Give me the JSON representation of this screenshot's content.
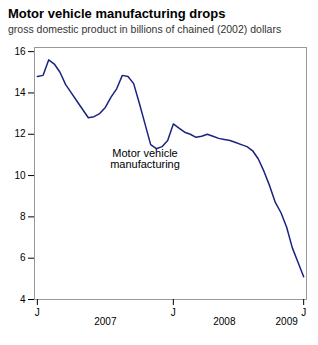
{
  "chart_data": {
    "type": "line",
    "title": "Motor vehicle manufacturing drops",
    "subtitle": "gross domestic product in billions of chained (2002) dollars",
    "color": "#1a237e",
    "x": [
      0,
      1,
      2,
      3,
      4,
      5,
      6,
      7,
      8,
      9,
      10,
      11,
      12,
      13,
      14,
      15,
      16,
      17,
      18,
      19,
      20,
      21,
      22,
      23,
      24,
      25,
      26,
      27,
      28,
      29,
      30,
      31,
      32,
      33,
      34,
      35,
      36,
      37,
      38,
      39,
      40,
      41,
      42,
      43,
      44,
      45,
      46,
      47
    ],
    "values": [
      14.8,
      14.85,
      15.6,
      15.4,
      15.0,
      14.4,
      14.0,
      13.6,
      13.2,
      12.8,
      12.85,
      13.0,
      13.3,
      13.8,
      14.2,
      14.85,
      14.8,
      14.45,
      13.5,
      12.5,
      11.5,
      11.3,
      11.4,
      11.7,
      12.5,
      12.3,
      12.1,
      12.0,
      11.85,
      11.9,
      12.0,
      11.9,
      11.8,
      11.75,
      11.7,
      11.6,
      11.5,
      11.4,
      11.2,
      10.8,
      10.2,
      9.5,
      8.7,
      8.2,
      7.5,
      6.5,
      5.8,
      5.1
    ],
    "xlim": [
      -0.5,
      47.5
    ],
    "xticks": [
      {
        "value": 0,
        "label": "J"
      },
      {
        "value": 24,
        "label": "J"
      },
      {
        "value": 47,
        "label": "J"
      }
    ],
    "year_labels": [
      {
        "x": 12,
        "text": "2007"
      },
      {
        "x": 33,
        "text": "2008"
      },
      {
        "x": 44,
        "text": "2009"
      }
    ],
    "ylim": [
      4,
      16.2
    ],
    "yticks": [
      4,
      6,
      8,
      10,
      12,
      14,
      16
    ],
    "annotations": [
      {
        "text": "Motor vehicle\nmanufacturing",
        "x": 19,
        "y": 10.8
      }
    ],
    "grid": false
  }
}
